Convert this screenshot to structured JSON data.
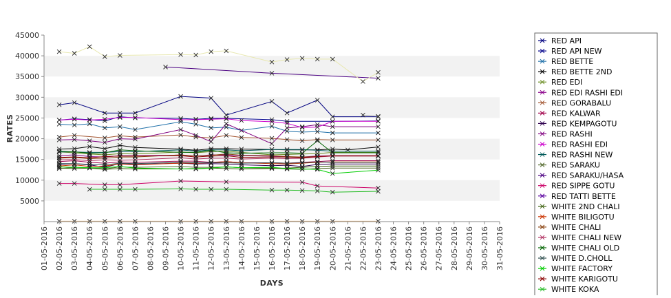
{
  "chart_data": {
    "type": "line",
    "title": "",
    "xlabel": "DAYS",
    "ylabel": "RATES",
    "ylim": [
      0,
      45000
    ],
    "yticks": [
      5000,
      10000,
      15000,
      20000,
      25000,
      30000,
      35000,
      40000,
      45000
    ],
    "grid": "alternating horizontal bands",
    "legend_position": "right",
    "categories": [
      "01-05-2016",
      "02-05-2016",
      "03-05-2016",
      "04-05-2016",
      "05-05-2016",
      "06-05-2016",
      "07-05-2016",
      "08-05-2016",
      "09-05-2016",
      "10-05-2016",
      "11-05-2016",
      "12-05-2016",
      "13-05-2016",
      "14-05-2016",
      "15-05-2016",
      "16-05-2016",
      "17-05-2016",
      "18-05-2016",
      "19-05-2016",
      "20-05-2016",
      "21-05-2016",
      "22-05-2016",
      "23-05-2016",
      "24-05-2016",
      "25-05-2016",
      "26-05-2016",
      "27-05-2016",
      "28-05-2016",
      "29-05-2016",
      "30-05-2016",
      "31-05-2016"
    ],
    "series": [
      {
        "name": "RED API",
        "color": "#000080",
        "values": [
          null,
          28200,
          28700,
          null,
          26200,
          26200,
          26200,
          null,
          null,
          30200,
          null,
          29800,
          25700,
          null,
          null,
          29000,
          26200,
          null,
          29300,
          25300,
          null,
          null,
          25300,
          null,
          null,
          null,
          null,
          null,
          null,
          null,
          null
        ]
      },
      {
        "name": "RED API NEW",
        "color": "#00008b",
        "values": [
          null,
          24500,
          24800,
          24600,
          24300,
          25300,
          25000,
          null,
          null,
          24900,
          24700,
          24900,
          24900,
          null,
          null,
          24600,
          24200,
          null,
          null,
          24200,
          null,
          null,
          24300,
          null,
          null,
          null,
          null,
          null,
          null,
          null,
          null
        ]
      },
      {
        "name": "RED BETTE",
        "color": "#1e6fa8",
        "values": [
          null,
          23500,
          23300,
          23600,
          22600,
          22900,
          22200,
          null,
          null,
          24100,
          23500,
          22600,
          22800,
          22000,
          null,
          23000,
          21800,
          21600,
          21700,
          21400,
          null,
          null,
          21400,
          null,
          null,
          null,
          null,
          null,
          null,
          null,
          null
        ]
      },
      {
        "name": "RED BETTE 2ND",
        "color": "#000000",
        "values": [
          null,
          17500,
          17600,
          18100,
          17600,
          18400,
          17900,
          null,
          null,
          17500,
          17200,
          17600,
          17600,
          17500,
          null,
          17400,
          17300,
          17300,
          17300,
          17500,
          17300,
          null,
          18000,
          null,
          null,
          null,
          null,
          null,
          null,
          null,
          null
        ]
      },
      {
        "name": "RED EDI",
        "color": "#6b8e23",
        "values": [
          null,
          16800,
          16600,
          16300,
          16100,
          16400,
          16300,
          null,
          null,
          16800,
          16600,
          16900,
          17000,
          16700,
          null,
          16100,
          16200,
          16300,
          16400,
          16700,
          null,
          null,
          16700,
          null,
          null,
          null,
          null,
          null,
          null,
          null,
          null
        ]
      },
      {
        "name": "RED EDI RASHI EDI",
        "color": "#8b008b",
        "values": [
          null,
          15900,
          16100,
          15700,
          15600,
          15900,
          15900,
          null,
          null,
          16000,
          15800,
          16100,
          16100,
          15900,
          null,
          15800,
          15600,
          15600,
          15800,
          15900,
          null,
          null,
          15900,
          null,
          null,
          null,
          null,
          null,
          null,
          null,
          null
        ]
      },
      {
        "name": "RED GORABALU",
        "color": "#a0522d",
        "values": [
          null,
          20400,
          20800,
          null,
          20200,
          20700,
          20400,
          null,
          null,
          20900,
          20400,
          20200,
          20800,
          20300,
          null,
          20100,
          19800,
          19500,
          19800,
          19700,
          null,
          null,
          19700,
          null,
          null,
          null,
          null,
          null,
          null,
          null,
          null
        ]
      },
      {
        "name": "RED KALWAR",
        "color": "#a0004a",
        "values": [
          null,
          14500,
          14700,
          14300,
          14100,
          14400,
          14300,
          null,
          null,
          14600,
          14600,
          14300,
          14500,
          14200,
          null,
          14200,
          14100,
          14300,
          14500,
          14700,
          null,
          null,
          14700,
          null,
          null,
          null,
          null,
          null,
          null,
          null,
          null
        ]
      },
      {
        "name": "RED KEMPAGOTU",
        "color": "#2f004f",
        "values": [
          null,
          13800,
          14000,
          13700,
          13100,
          14000,
          13800,
          null,
          null,
          14100,
          13900,
          14000,
          13900,
          13700,
          null,
          13500,
          13600,
          13300,
          13800,
          13900,
          null,
          null,
          13900,
          null,
          null,
          null,
          null,
          null,
          null,
          null,
          null
        ]
      },
      {
        "name": "RED RASHI",
        "color": "#800080",
        "values": [
          null,
          19700,
          19800,
          19500,
          19100,
          20000,
          19900,
          null,
          null,
          22200,
          20800,
          19300,
          23600,
          null,
          null,
          18800,
          22600,
          22900,
          23400,
          22900,
          null,
          null,
          22900,
          null,
          null,
          null,
          null,
          null,
          null,
          null,
          null
        ]
      },
      {
        "name": "RED RASHI EDI",
        "color": "#cc00cc",
        "values": [
          null,
          24500,
          24700,
          24500,
          24700,
          25100,
          25100,
          null,
          null,
          24600,
          24600,
          24700,
          24800,
          24400,
          null,
          24100,
          23700,
          22700,
          22800,
          24200,
          null,
          null,
          24200,
          null,
          null,
          null,
          null,
          null,
          null,
          null,
          null
        ]
      },
      {
        "name": "RED RASHI NEW",
        "color": "#005a5a",
        "values": [
          null,
          16800,
          16800,
          16700,
          16700,
          16900,
          16900,
          null,
          null,
          17300,
          17000,
          17300,
          17300,
          17100,
          null,
          17400,
          17400,
          17400,
          17200,
          17000,
          null,
          null,
          17000,
          null,
          null,
          null,
          null,
          null,
          null,
          null,
          null
        ]
      },
      {
        "name": "RED SARAKU",
        "color": "#556b2f",
        "values": [
          null,
          12800,
          13100,
          13000,
          12700,
          13200,
          13100,
          null,
          null,
          13300,
          13100,
          13100,
          13200,
          13000,
          null,
          12900,
          12700,
          12600,
          12800,
          12900,
          null,
          null,
          12900,
          null,
          null,
          null,
          null,
          null,
          null,
          null,
          null
        ]
      },
      {
        "name": "RED SARAKU/HASA",
        "color": "#4b0082",
        "values": [
          null,
          null,
          null,
          null,
          null,
          null,
          null,
          null,
          37300,
          null,
          null,
          null,
          null,
          null,
          null,
          35800,
          null,
          null,
          null,
          null,
          null,
          null,
          34600,
          null,
          null,
          null,
          null,
          null,
          null,
          null,
          null
        ]
      },
      {
        "name": "RED SIPPE GOTU",
        "color": "#cc0066",
        "values": [
          null,
          9200,
          9200,
          null,
          8900,
          8900,
          null,
          null,
          null,
          9800,
          null,
          null,
          9600,
          null,
          null,
          null,
          null,
          9500,
          8600,
          null,
          null,
          null,
          8100,
          null,
          null,
          null,
          null,
          null,
          null,
          null,
          null
        ]
      },
      {
        "name": "RED TATTI BETTE",
        "color": "#5a00a0",
        "values": [
          null,
          null,
          null,
          null,
          null,
          null,
          null,
          null,
          null,
          null,
          null,
          null,
          null,
          null,
          null,
          null,
          null,
          null,
          null,
          null,
          null,
          null,
          null,
          null,
          null,
          null,
          null,
          null,
          null,
          null,
          null
        ]
      },
      {
        "name": "WHITE 2ND CHALI",
        "color": "#3a5f0b",
        "values": [
          null,
          12900,
          12800,
          12900,
          12600,
          12800,
          12700,
          null,
          null,
          12700,
          12700,
          12900,
          12800,
          12700,
          null,
          12800,
          12900,
          13100,
          13300,
          13400,
          null,
          null,
          13400,
          null,
          null,
          null,
          null,
          null,
          null,
          null,
          null
        ]
      },
      {
        "name": "WHITE BILIGOTU",
        "color": "#cc3300",
        "values": [
          null,
          13400,
          13700,
          13300,
          13400,
          13900,
          13700,
          null,
          null,
          14100,
          14100,
          14200,
          14500,
          14200,
          null,
          14000,
          13900,
          14100,
          14300,
          14400,
          null,
          null,
          14400,
          null,
          null,
          null,
          null,
          null,
          null,
          null,
          null
        ]
      },
      {
        "name": "WHITE CHALI",
        "color": "#8b4513",
        "values": [
          null,
          15300,
          15500,
          15200,
          15300,
          15600,
          15600,
          null,
          null,
          16100,
          15800,
          16000,
          16300,
          16000,
          null,
          15900,
          15700,
          15600,
          15700,
          15800,
          null,
          null,
          15800,
          null,
          null,
          null,
          null,
          null,
          null,
          null,
          null
        ]
      },
      {
        "name": "WHITE CHALI NEW",
        "color": "#b03060",
        "values": [
          null,
          14900,
          15000,
          14700,
          14900,
          14800,
          14900,
          null,
          null,
          15400,
          15100,
          15300,
          15300,
          15100,
          null,
          15300,
          15200,
          15300,
          15600,
          15800,
          null,
          null,
          15800,
          null,
          null,
          null,
          null,
          null,
          null,
          null,
          null
        ]
      },
      {
        "name": "WHITE CHALI OLD",
        "color": "#006400",
        "values": [
          null,
          17000,
          16800,
          16500,
          16600,
          17300,
          17100,
          null,
          null,
          16700,
          16700,
          17200,
          16600,
          16500,
          null,
          16600,
          16600,
          16500,
          19500,
          16600,
          null,
          null,
          16600,
          null,
          null,
          null,
          null,
          null,
          null,
          null,
          null
        ]
      },
      {
        "name": "WHITE D.CHOLL",
        "color": "#2f4f4f",
        "values": [
          null,
          14000,
          14000,
          13800,
          13700,
          14100,
          14000,
          null,
          null,
          14300,
          14200,
          14200,
          14200,
          14100,
          null,
          14200,
          14100,
          14200,
          14400,
          14300,
          null,
          null,
          14300,
          null,
          null,
          null,
          null,
          null,
          null,
          null,
          null
        ]
      },
      {
        "name": "WHITE FACTORY",
        "color": "#00cc00",
        "values": [
          null,
          13200,
          13100,
          13000,
          13000,
          13300,
          12900,
          null,
          null,
          12700,
          12800,
          12900,
          13200,
          13000,
          null,
          13100,
          12800,
          12700,
          12600,
          11600,
          null,
          null,
          12400,
          null,
          null,
          null,
          null,
          null,
          null,
          null,
          null
        ]
      },
      {
        "name": "WHITE KARIGOTU",
        "color": "#8b0000",
        "values": [
          null,
          15500,
          15600,
          15400,
          15700,
          15800,
          15800,
          null,
          null,
          15900,
          15600,
          15800,
          15900,
          15500,
          null,
          15600,
          15600,
          15400,
          15700,
          15900,
          null,
          null,
          15900,
          null,
          null,
          null,
          null,
          null,
          null,
          null,
          null
        ]
      },
      {
        "name": "WHITE KOKA",
        "color": "#22bb22",
        "values": [
          null,
          null,
          null,
          7800,
          7800,
          7800,
          7800,
          null,
          null,
          7900,
          7800,
          7800,
          7800,
          null,
          null,
          7600,
          7600,
          7500,
          7400,
          7100,
          null,
          null,
          7300,
          null,
          null,
          null,
          null,
          null,
          null,
          null,
          null
        ]
      },
      {
        "name": "",
        "color": "#e8e8b0",
        "values": [
          null,
          41000,
          40600,
          42200,
          39800,
          40100,
          null,
          null,
          null,
          40300,
          40200,
          41000,
          41200,
          null,
          null,
          38500,
          39100,
          39400,
          39200,
          39200,
          null,
          33800,
          36000,
          null,
          null,
          null,
          null,
          null,
          null,
          null,
          null
        ]
      },
      {
        "name": "",
        "color": "#e8b070",
        "values": [
          null,
          100,
          100,
          100,
          100,
          100,
          100,
          null,
          null,
          100,
          100,
          100,
          100,
          100,
          null,
          100,
          100,
          100,
          100,
          100,
          null,
          null,
          100,
          null,
          null,
          null,
          null,
          null,
          null,
          null,
          null
        ]
      },
      {
        "name": "",
        "color": "#aaaaaa",
        "values": [
          null,
          null,
          null,
          null,
          null,
          null,
          null,
          null,
          null,
          null,
          null,
          null,
          null,
          null,
          null,
          null,
          null,
          null,
          null,
          null,
          null,
          25700,
          25400,
          null,
          null,
          null,
          null,
          null,
          null,
          null,
          null
        ]
      }
    ]
  }
}
